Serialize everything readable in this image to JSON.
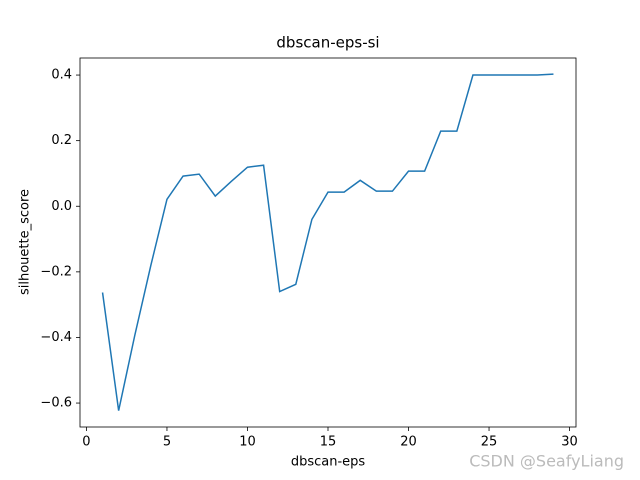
{
  "chart_data": {
    "type": "line",
    "title": "dbscan-eps-si",
    "x_label": "dbscan-eps",
    "y_label": "silhouette_score",
    "x": [
      1,
      2,
      3,
      4,
      5,
      6,
      7,
      8,
      9,
      10,
      11,
      12,
      13,
      14,
      15,
      16,
      17,
      18,
      19,
      20,
      21,
      22,
      23,
      24,
      25,
      26,
      27,
      28,
      29
    ],
    "series": [
      {
        "name": "silhouette_score",
        "color": "#1f77b4",
        "values": [
          -0.263,
          -0.623,
          -0.394,
          -0.18,
          0.021,
          0.092,
          0.098,
          0.031,
          0.076,
          0.119,
          0.125,
          -0.26,
          -0.238,
          -0.04,
          0.043,
          0.043,
          0.079,
          0.046,
          0.046,
          0.107,
          0.107,
          0.229,
          0.229,
          0.4,
          0.4,
          0.4,
          0.4,
          0.4,
          0.403
        ]
      }
    ],
    "xlim": [
      -0.4,
      30.4
    ],
    "ylim": [
      -0.673,
      0.452
    ],
    "xticks": [
      0,
      5,
      10,
      15,
      20,
      25,
      30
    ],
    "yticks": [
      {
        "value": -0.6,
        "label": "−0.6"
      },
      {
        "value": -0.4,
        "label": "−0.4"
      },
      {
        "value": -0.2,
        "label": "−0.2"
      },
      {
        "value": 0,
        "label": "0.0"
      },
      0.2,
      0.4
    ],
    "grid": false,
    "watermark": "CSDN @SeafyLiang"
  }
}
